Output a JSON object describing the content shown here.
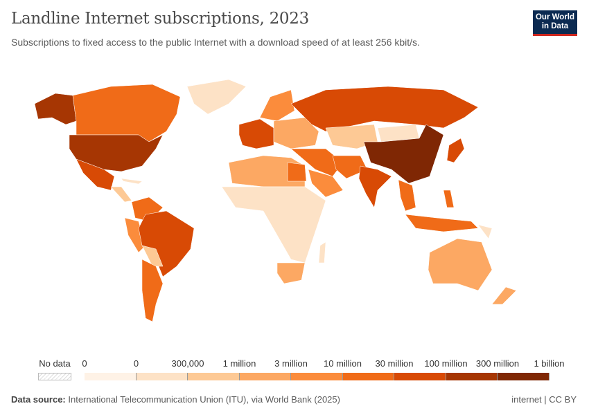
{
  "title": "Landline Internet subscriptions, 2023",
  "subtitle": "Subscriptions to fixed access to the public Internet with a download speed of at least 256 kbit/s.",
  "logo": {
    "line1": "Our World",
    "line2": "in Data"
  },
  "legend": {
    "no_data_label": "No data",
    "labels": [
      "0",
      "0",
      "300,000",
      "1 million",
      "3 million",
      "10 million",
      "30 million",
      "100 million",
      "300 million",
      "1 billion"
    ],
    "colors": [
      "#fef2e6",
      "#fde2c6",
      "#fdc995",
      "#fca863",
      "#fb8c3c",
      "#f06b18",
      "#d84a05",
      "#a63603",
      "#7f2704"
    ],
    "no_data_color": "#e6e6e6"
  },
  "footer": {
    "source_label": "Data source:",
    "source": "International Telecommunication Union (ITU), via World Bank (2025)",
    "license": "internet | CC BY"
  }
}
